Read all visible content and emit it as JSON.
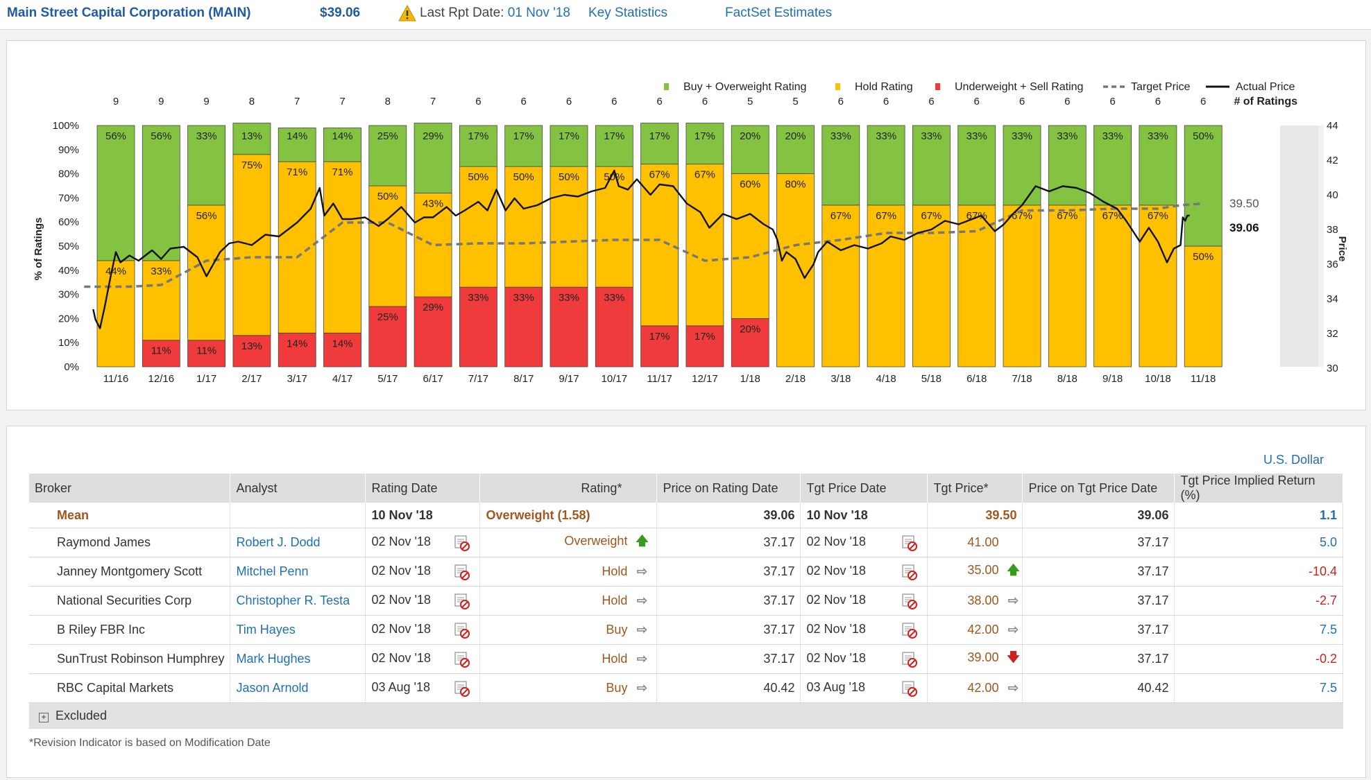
{
  "header": {
    "company": "Main Street Capital Corporation (MAIN)",
    "price": "$39.06",
    "last_rpt_label": "Last Rpt Date:",
    "last_rpt_date": "01 Nov '18",
    "key_statistics": "Key Statistics",
    "factset_estimates": "FactSet Estimates"
  },
  "chart_data": {
    "type": "bar",
    "stacked": true,
    "categories": [
      "11/16",
      "12/16",
      "1/17",
      "2/17",
      "3/17",
      "4/17",
      "5/17",
      "6/17",
      "7/17",
      "8/17",
      "9/17",
      "10/17",
      "11/17",
      "12/17",
      "1/18",
      "2/18",
      "3/18",
      "4/18",
      "5/18",
      "6/18",
      "7/18",
      "8/18",
      "9/18",
      "10/18",
      "11/18"
    ],
    "num_ratings": [
      9,
      9,
      9,
      8,
      7,
      7,
      8,
      7,
      6,
      6,
      6,
      6,
      6,
      6,
      5,
      5,
      6,
      6,
      6,
      6,
      6,
      6,
      6,
      6,
      6
    ],
    "series": [
      {
        "name": "Underweight + Sell Rating",
        "color": "#ef3b3b",
        "values": [
          0,
          11,
          11,
          13,
          14,
          14,
          25,
          29,
          33,
          33,
          33,
          33,
          17,
          17,
          20,
          0,
          0,
          0,
          0,
          0,
          0,
          0,
          0,
          0,
          0
        ]
      },
      {
        "name": "Hold Rating",
        "color": "#ffc000",
        "values": [
          44,
          33,
          56,
          75,
          71,
          71,
          50,
          43,
          50,
          50,
          50,
          50,
          67,
          67,
          60,
          80,
          67,
          67,
          67,
          67,
          67,
          67,
          67,
          67,
          50
        ]
      },
      {
        "name": "Buy + Overweight Rating",
        "color": "#84c341",
        "values": [
          56,
          56,
          33,
          13,
          14,
          14,
          25,
          29,
          17,
          17,
          17,
          17,
          17,
          17,
          20,
          20,
          33,
          33,
          33,
          33,
          33,
          33,
          33,
          33,
          50
        ]
      }
    ],
    "value_labels": {
      "red": [
        "",
        "11%",
        "11%",
        "13%",
        "14%",
        "14%",
        "25%",
        "29%",
        "33%",
        "33%",
        "33%",
        "33%",
        "17%",
        "17%",
        "20%",
        "",
        "",
        "",
        "",
        "",
        "",
        "",
        "",
        "",
        ""
      ],
      "yellow": [
        "44%",
        "33%",
        "56%",
        "75%",
        "71%",
        "71%",
        "50%",
        "43%",
        "50%",
        "50%",
        "50%",
        "50%",
        "67%",
        "67%",
        "60%",
        "80%",
        "67%",
        "67%",
        "67%",
        "67%",
        "67%",
        "67%",
        "67%",
        "67%",
        "50%"
      ],
      "green": [
        "56%",
        "56%",
        "33%",
        "13%",
        "14%",
        "14%",
        "25%",
        "29%",
        "17%",
        "17%",
        "17%",
        "17%",
        "17%",
        "17%",
        "20%",
        "20%",
        "33%",
        "33%",
        "33%",
        "33%",
        "33%",
        "33%",
        "33%",
        "33%",
        "50%"
      ]
    },
    "target_price": {
      "name": "Target Price",
      "color": "#777777",
      "x": [
        -0.7,
        0.3,
        1,
        2,
        3,
        4,
        5,
        6,
        7,
        8,
        9,
        10,
        11,
        12,
        13,
        14,
        15,
        16,
        17,
        18,
        19,
        20,
        21,
        22,
        23,
        23.5,
        24
      ],
      "y": [
        34.7,
        34.7,
        34.8,
        36.2,
        36.4,
        36.4,
        38.4,
        38.4,
        37.1,
        37.2,
        37.2,
        37.3,
        37.4,
        37.4,
        36.2,
        36.4,
        37.1,
        37.4,
        37.8,
        37.8,
        37.9,
        39.1,
        39.1,
        39.2,
        39.2,
        39.4,
        39.5
      ]
    },
    "actual_price": {
      "name": "Actual Price",
      "color": "#111111",
      "x": [
        -0.5,
        -0.45,
        -0.35,
        -0.25,
        -0.1,
        0,
        0.1,
        0.3,
        0.5,
        0.8,
        1,
        1.2,
        1.5,
        1.8,
        2,
        2.3,
        2.5,
        2.7,
        3,
        3.3,
        3.6,
        4,
        4.3,
        4.5,
        4.6,
        4.8,
        5,
        5.2,
        5.5,
        5.8,
        6,
        6.3,
        6.6,
        6.8,
        7,
        7.3,
        7.5,
        7.7,
        8,
        8.2,
        8.4,
        8.6,
        8.8,
        9,
        9.3,
        9.6,
        9.9,
        10.2,
        10.5,
        10.8,
        11,
        11.1,
        11.3,
        11.5,
        11.8,
        12,
        12.3,
        12.6,
        12.9,
        13.1,
        13.4,
        13.7,
        14,
        14.3,
        14.5,
        14.6,
        14.7,
        14.8,
        15,
        15.2,
        15.4,
        15.5,
        15.7,
        16,
        16.3,
        16.6,
        16.9,
        17.1,
        17.4,
        17.7,
        18,
        18.3,
        18.6,
        18.9,
        19.1,
        19.4,
        19.6,
        19.8,
        20,
        20.3,
        20.6,
        20.9,
        21.2,
        21.5,
        21.8,
        22.1,
        22.3,
        22.6,
        22.8,
        23,
        23.2,
        23.35,
        23.5,
        23.55,
        23.6,
        23.65,
        23.7
      ],
      "y": [
        33.4,
        32.8,
        32.3,
        33.5,
        35.5,
        36.7,
        36.1,
        36.5,
        36.2,
        36.8,
        36.3,
        36.9,
        37.0,
        36.4,
        35.3,
        36.7,
        37.2,
        37.3,
        37.1,
        37.7,
        37.6,
        38.4,
        39.2,
        40.4,
        38.8,
        39.5,
        38.6,
        38.6,
        38.7,
        38.2,
        38.6,
        39.3,
        38.4,
        38.7,
        38.7,
        39.3,
        38.8,
        39.1,
        39.6,
        39.1,
        40.3,
        39.1,
        39.8,
        39.2,
        39.4,
        39.8,
        40.0,
        39.9,
        40.2,
        40.4,
        41.4,
        40.5,
        40.3,
        40.9,
        40.0,
        40.6,
        40.5,
        39.5,
        39.0,
        38.1,
        38.9,
        38.6,
        38.9,
        38.3,
        38.0,
        37.4,
        36.2,
        36.7,
        36.3,
        35.2,
        36.0,
        36.7,
        37.3,
        36.8,
        37.1,
        36.9,
        37.2,
        37.6,
        37.4,
        37.8,
        38.0,
        38.5,
        38.3,
        38.6,
        38.8,
        37.9,
        38.3,
        38.9,
        39.4,
        40.5,
        40.2,
        40.5,
        40.4,
        40.1,
        39.6,
        39.2,
        38.5,
        37.3,
        38.1,
        37.3,
        36.1,
        36.9,
        37.1,
        38.7,
        38.5,
        38.8,
        38.8
      ]
    },
    "price_labels": {
      "target": "39.50",
      "actual": "39.06"
    },
    "y_left_ticks": [
      "0%",
      "10%",
      "20%",
      "30%",
      "40%",
      "50%",
      "60%",
      "70%",
      "80%",
      "90%",
      "100%"
    ],
    "y_right_ticks": [
      "30",
      "32",
      "34",
      "36",
      "38",
      "40",
      "42",
      "44"
    ],
    "ylabel_left": "% of Ratings",
    "ylabel_right": "Price",
    "ylim_left": [
      0,
      100
    ],
    "ylim_right": [
      30,
      44
    ],
    "legend": {
      "buy": "Buy + Overweight Rating",
      "hold": "Hold Rating",
      "sell": "Underweight + Sell Rating",
      "target": "Target Price",
      "actual": "Actual Price",
      "count": "# of Ratings"
    }
  },
  "table": {
    "currency": "U.S. Dollar",
    "headers": [
      "Broker",
      "Analyst",
      "Rating Date",
      "Rating*",
      "Price on Rating Date",
      "Tgt Price Date",
      "Tgt Price*",
      "Price on Tgt Price Date",
      "Tgt Price Implied Return (%)"
    ],
    "mean": {
      "broker": "Mean",
      "rating_date": "10 Nov '18",
      "rating": "Overweight (1.58)",
      "price_on_rating": "39.06",
      "tgt_date": "10 Nov '18",
      "tgt_price": "39.50",
      "price_on_tgt": "39.06",
      "implied": "1.1"
    },
    "rows": [
      {
        "broker": "Raymond James",
        "analyst": "Robert J. Dodd",
        "rating_date": "02 Nov '18",
        "rating": "Overweight",
        "rating_arrow": "up",
        "price_on_rating": "37.17",
        "tgt_date": "02 Nov '18",
        "tgt_price": "41.00",
        "tgt_arrow": "",
        "price_on_tgt": "37.17",
        "implied": "5.0"
      },
      {
        "broker": "Janney Montgomery Scott",
        "analyst": "Mitchel Penn",
        "rating_date": "02 Nov '18",
        "rating": "Hold",
        "rating_arrow": "right",
        "price_on_rating": "37.17",
        "tgt_date": "02 Nov '18",
        "tgt_price": "35.00",
        "tgt_arrow": "up",
        "price_on_tgt": "37.17",
        "implied": "-10.4"
      },
      {
        "broker": "National Securities Corp",
        "analyst": "Christopher R. Testa",
        "rating_date": "02 Nov '18",
        "rating": "Hold",
        "rating_arrow": "right",
        "price_on_rating": "37.17",
        "tgt_date": "02 Nov '18",
        "tgt_price": "38.00",
        "tgt_arrow": "right",
        "price_on_tgt": "37.17",
        "implied": "-2.7"
      },
      {
        "broker": "B Riley FBR Inc",
        "analyst": "Tim Hayes",
        "rating_date": "02 Nov '18",
        "rating": "Buy",
        "rating_arrow": "right",
        "price_on_rating": "37.17",
        "tgt_date": "02 Nov '18",
        "tgt_price": "42.00",
        "tgt_arrow": "right",
        "price_on_tgt": "37.17",
        "implied": "7.5"
      },
      {
        "broker": "SunTrust Robinson Humphrey",
        "analyst": "Mark Hughes",
        "rating_date": "02 Nov '18",
        "rating": "Hold",
        "rating_arrow": "right",
        "price_on_rating": "37.17",
        "tgt_date": "02 Nov '18",
        "tgt_price": "39.00",
        "tgt_arrow": "down",
        "price_on_tgt": "37.17",
        "implied": "-0.2"
      },
      {
        "broker": "RBC Capital Markets",
        "analyst": "Jason Arnold",
        "rating_date": "03 Aug '18",
        "rating": "Buy",
        "rating_arrow": "right",
        "price_on_rating": "40.42",
        "tgt_date": "03 Aug '18",
        "tgt_price": "42.00",
        "tgt_arrow": "right",
        "price_on_tgt": "40.42",
        "implied": "7.5"
      }
    ],
    "excluded_label": "Excluded",
    "footnote": "*Revision Indicator is based on Modification Date"
  }
}
